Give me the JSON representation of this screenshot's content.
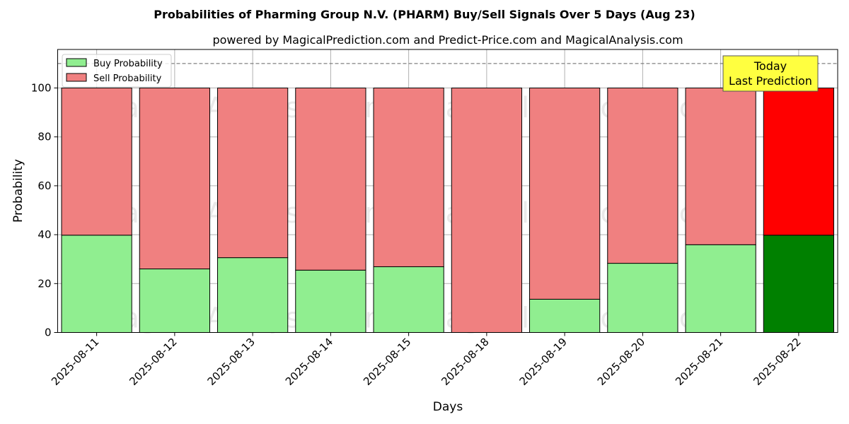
{
  "chart_data": {
    "type": "bar",
    "stacked": true,
    "title": "Probabilities of Pharming Group N.V. (PHARM) Buy/Sell Signals Over 5 Days (Aug 23)",
    "subtitle": "powered by MagicalPrediction.com and Predict-Price.com and MagicalAnalysis.com",
    "xlabel": "Days",
    "ylabel": "Probability",
    "ylim": [
      0,
      115
    ],
    "yticks": [
      0,
      20,
      40,
      60,
      80,
      100
    ],
    "grid": true,
    "legend_position": "top-left",
    "categories": [
      "2025-08-11",
      "2025-08-12",
      "2025-08-13",
      "2025-08-14",
      "2025-08-15",
      "2025-08-18",
      "2025-08-19",
      "2025-08-20",
      "2025-08-21",
      "2025-08-22"
    ],
    "series": [
      {
        "name": "Buy Probability",
        "color": "#90ee90",
        "highlight_color": "#008000",
        "values": [
          39.8,
          26.0,
          30.6,
          25.5,
          26.9,
          0.0,
          13.6,
          28.3,
          35.9,
          39.8
        ]
      },
      {
        "name": "Sell Probability",
        "color": "#f08080",
        "highlight_color": "#ff0000",
        "values": [
          60.2,
          74.0,
          69.4,
          74.5,
          73.1,
          100.0,
          86.4,
          71.7,
          64.1,
          60.2
        ]
      }
    ],
    "highlight_index": 9,
    "reference_line": {
      "y": 110,
      "style": "dashed",
      "color": "#808080"
    },
    "annotation": {
      "lines": [
        "Today",
        "Last Prediction"
      ],
      "background": "#ffff40"
    },
    "watermarks": [
      "MagicalAnalysis.com",
      "MagicalPrediction.com"
    ]
  }
}
